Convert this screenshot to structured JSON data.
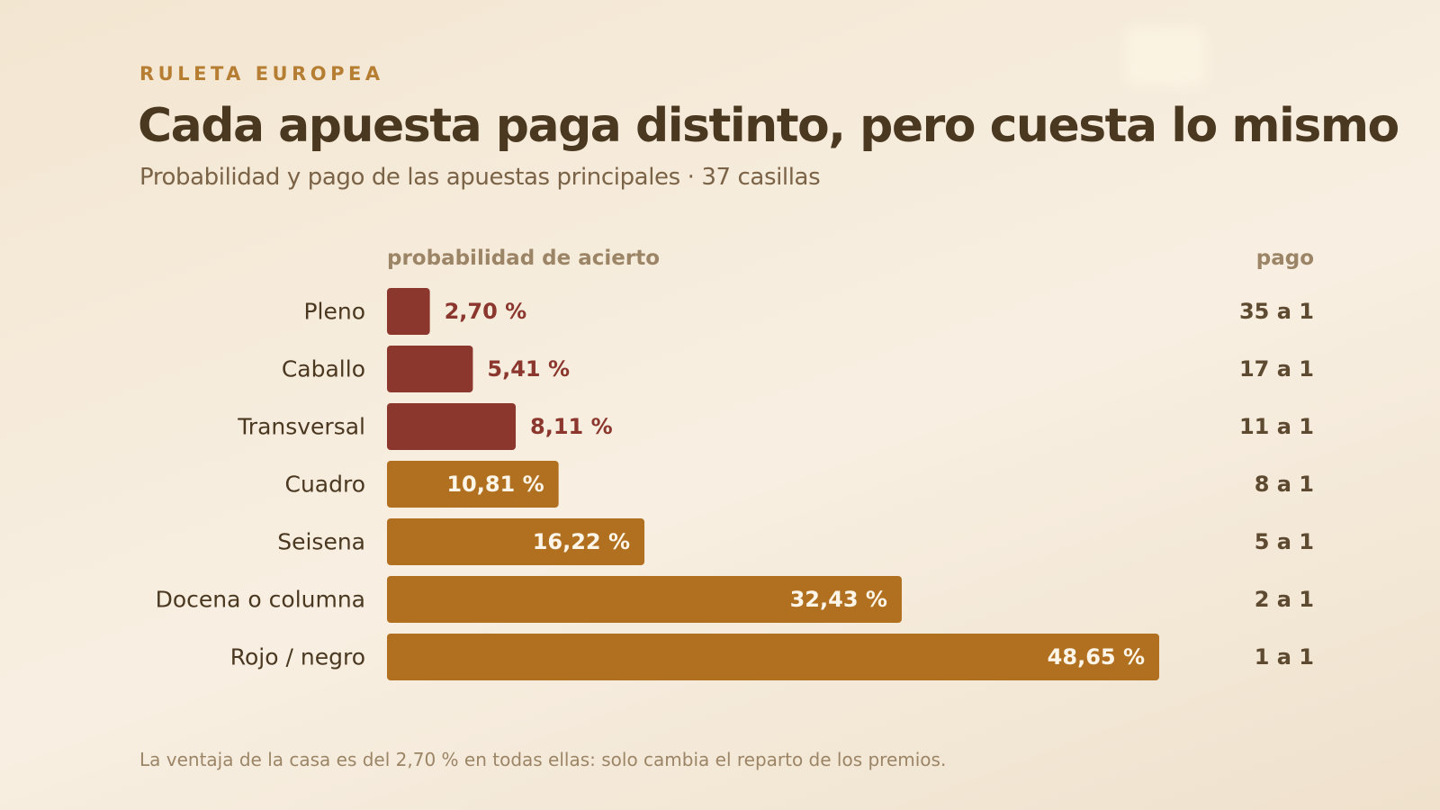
{
  "eyebrow": "RULETA EUROPEA",
  "title": "Cada apuesta paga distinto, pero cuesta lo mismo",
  "subtitle": "Probabilidad y pago de las apuestas principales · 37 casillas",
  "footnote": "La ventaja de la casa es del 2,70 % en todas ellas: solo cambia el reparto de los premios.",
  "colors": {
    "low_prob": "#8b372e",
    "high_prob": "#b07020",
    "category_text": "#4a3820",
    "inside_label": "#fdf5e8",
    "payout_text": "#5e4a30"
  },
  "chart_data": {
    "type": "bar",
    "orientation": "horizontal",
    "xlabel": "probabilidad de acierto",
    "payout_header": "pago",
    "xlim": [
      0,
      48.65
    ],
    "grid": false,
    "legend": "none",
    "categories": [
      "Pleno",
      "Caballo",
      "Transversal",
      "Cuadro",
      "Seisena",
      "Docena o columna",
      "Rojo / negro"
    ],
    "values": [
      2.7,
      5.41,
      8.11,
      10.81,
      16.22,
      32.43,
      48.65
    ],
    "value_labels": [
      "2,70 %",
      "5,41 %",
      "8,11 %",
      "10,81 %",
      "16,22 %",
      "32,43 %",
      "48,65 %"
    ],
    "payouts": [
      "35 a 1",
      "17 a 1",
      "11 a 1",
      "8 a 1",
      "5 a 1",
      "2 a 1",
      "1 a 1"
    ]
  }
}
